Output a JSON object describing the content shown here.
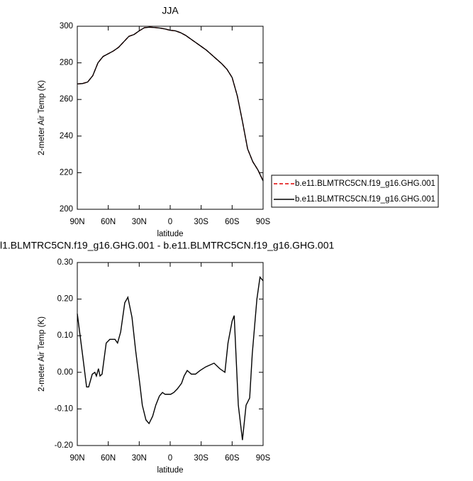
{
  "chart_data": [
    {
      "type": "line",
      "title": "JJA",
      "y_label": "2-meter Air Temp (K)",
      "x_label": "latitude",
      "xlim": [
        90,
        -90
      ],
      "xticks": [
        {
          "value": 90,
          "label": "90N"
        },
        {
          "value": 60,
          "label": "60N"
        },
        {
          "value": 30,
          "label": "30N"
        },
        0,
        {
          "value": -30,
          "label": "30S"
        },
        {
          "value": -60,
          "label": "60S"
        },
        {
          "value": -90,
          "label": "90S"
        }
      ],
      "ylim": [
        200,
        300
      ],
      "yticks": [
        200,
        220,
        240,
        260,
        280,
        300
      ],
      "legend": "right",
      "x": [
        90,
        85,
        80,
        75,
        70,
        65,
        60,
        55,
        50,
        45,
        40,
        35,
        30,
        25,
        20,
        15,
        10,
        5,
        0,
        -5,
        -10,
        -15,
        -20,
        -25,
        -30,
        -35,
        -40,
        -45,
        -50,
        -55,
        -60,
        -65,
        -70,
        -75,
        -80,
        -85,
        -90
      ],
      "series": [
        {
          "name": "b.e11.BLMTRC5CN.f19_g16.GHG.001",
          "color": "#e00000",
          "dash": true,
          "values": [
            268.5,
            268.7,
            269.5,
            273,
            280,
            283.5,
            285,
            286.5,
            288.5,
            291.5,
            294.5,
            295.5,
            297.5,
            299.2,
            299.5,
            299.3,
            299,
            298.5,
            297.8,
            297.5,
            296.5,
            295,
            293,
            291,
            289,
            287,
            284.5,
            282,
            279.5,
            276.5,
            272,
            262,
            248,
            233,
            226,
            221.5,
            215.5
          ]
        },
        {
          "name": "b.e11.BLMTRC5CN.f19_g16.GHG.001",
          "color": "#000000",
          "dash": false,
          "values": [
            268.5,
            268.7,
            269.5,
            273,
            280,
            283.5,
            285,
            286.5,
            288.5,
            291.5,
            294.5,
            295.5,
            297.5,
            299.2,
            299.5,
            299.3,
            299,
            298.5,
            297.8,
            297.5,
            296.5,
            295,
            293,
            291,
            289,
            287,
            284.5,
            282,
            279.5,
            276.5,
            272,
            262,
            248,
            233,
            226,
            221.5,
            215.5
          ]
        }
      ]
    },
    {
      "type": "line",
      "title": "l1.BLMTRC5CN.f19_g16.GHG.001 - b.e11.BLMTRC5CN.f19_g16.GHG.001",
      "y_label": "2-meter Air Temp (K)",
      "x_label": "latitude",
      "xlim": [
        90,
        -90
      ],
      "xticks": [
        {
          "value": 90,
          "label": "90N"
        },
        {
          "value": 60,
          "label": "60N"
        },
        {
          "value": 30,
          "label": "30N"
        },
        0,
        {
          "value": -30,
          "label": "30S"
        },
        {
          "value": -60,
          "label": "60S"
        },
        {
          "value": -90,
          "label": "90S"
        }
      ],
      "ylim": [
        -0.2,
        0.3
      ],
      "yticks": [
        {
          "value": -0.2,
          "label": "-0.20"
        },
        {
          "value": -0.1,
          "label": "-0.10"
        },
        {
          "value": 0,
          "label": "0.00"
        },
        {
          "value": 0.1,
          "label": "0.10"
        },
        {
          "value": 0.2,
          "label": "0.20"
        },
        {
          "value": 0.3,
          "label": "0.30"
        }
      ],
      "x": [
        90,
        85,
        81,
        79,
        75.5,
        73,
        71.5,
        69.5,
        68,
        66,
        62,
        58.5,
        53.5,
        51,
        48,
        44,
        41,
        37,
        33.5,
        29.5,
        27,
        23.5,
        20.5,
        17,
        14,
        10.5,
        7.5,
        5,
        1.5,
        -0.5,
        -3.5,
        -7,
        -11,
        -13.5,
        -16.5,
        -20.5,
        -24.5,
        -29,
        -34.5,
        -42.5,
        -48,
        -53,
        -56,
        -60,
        -62,
        -66,
        -70,
        -73.5,
        -77,
        -79.5,
        -84,
        -87,
        -90
      ],
      "series": [
        {
          "color": "#000000",
          "values": [
            0.16,
            0.05,
            -0.04,
            -0.04,
            -0.005,
            0.0,
            -0.01,
            0.01,
            -0.01,
            -0.005,
            0.08,
            0.09,
            0.09,
            0.08,
            0.11,
            0.19,
            0.205,
            0.15,
            0.06,
            -0.03,
            -0.09,
            -0.13,
            -0.14,
            -0.12,
            -0.09,
            -0.065,
            -0.055,
            -0.06,
            -0.06,
            -0.06,
            -0.055,
            -0.045,
            -0.03,
            -0.01,
            0.005,
            -0.005,
            -0.005,
            0.005,
            0.015,
            0.025,
            0.01,
            0.0,
            0.08,
            0.14,
            0.155,
            -0.09,
            -0.185,
            -0.09,
            -0.07,
            0.05,
            0.2,
            0.26,
            0.25
          ]
        }
      ]
    }
  ]
}
